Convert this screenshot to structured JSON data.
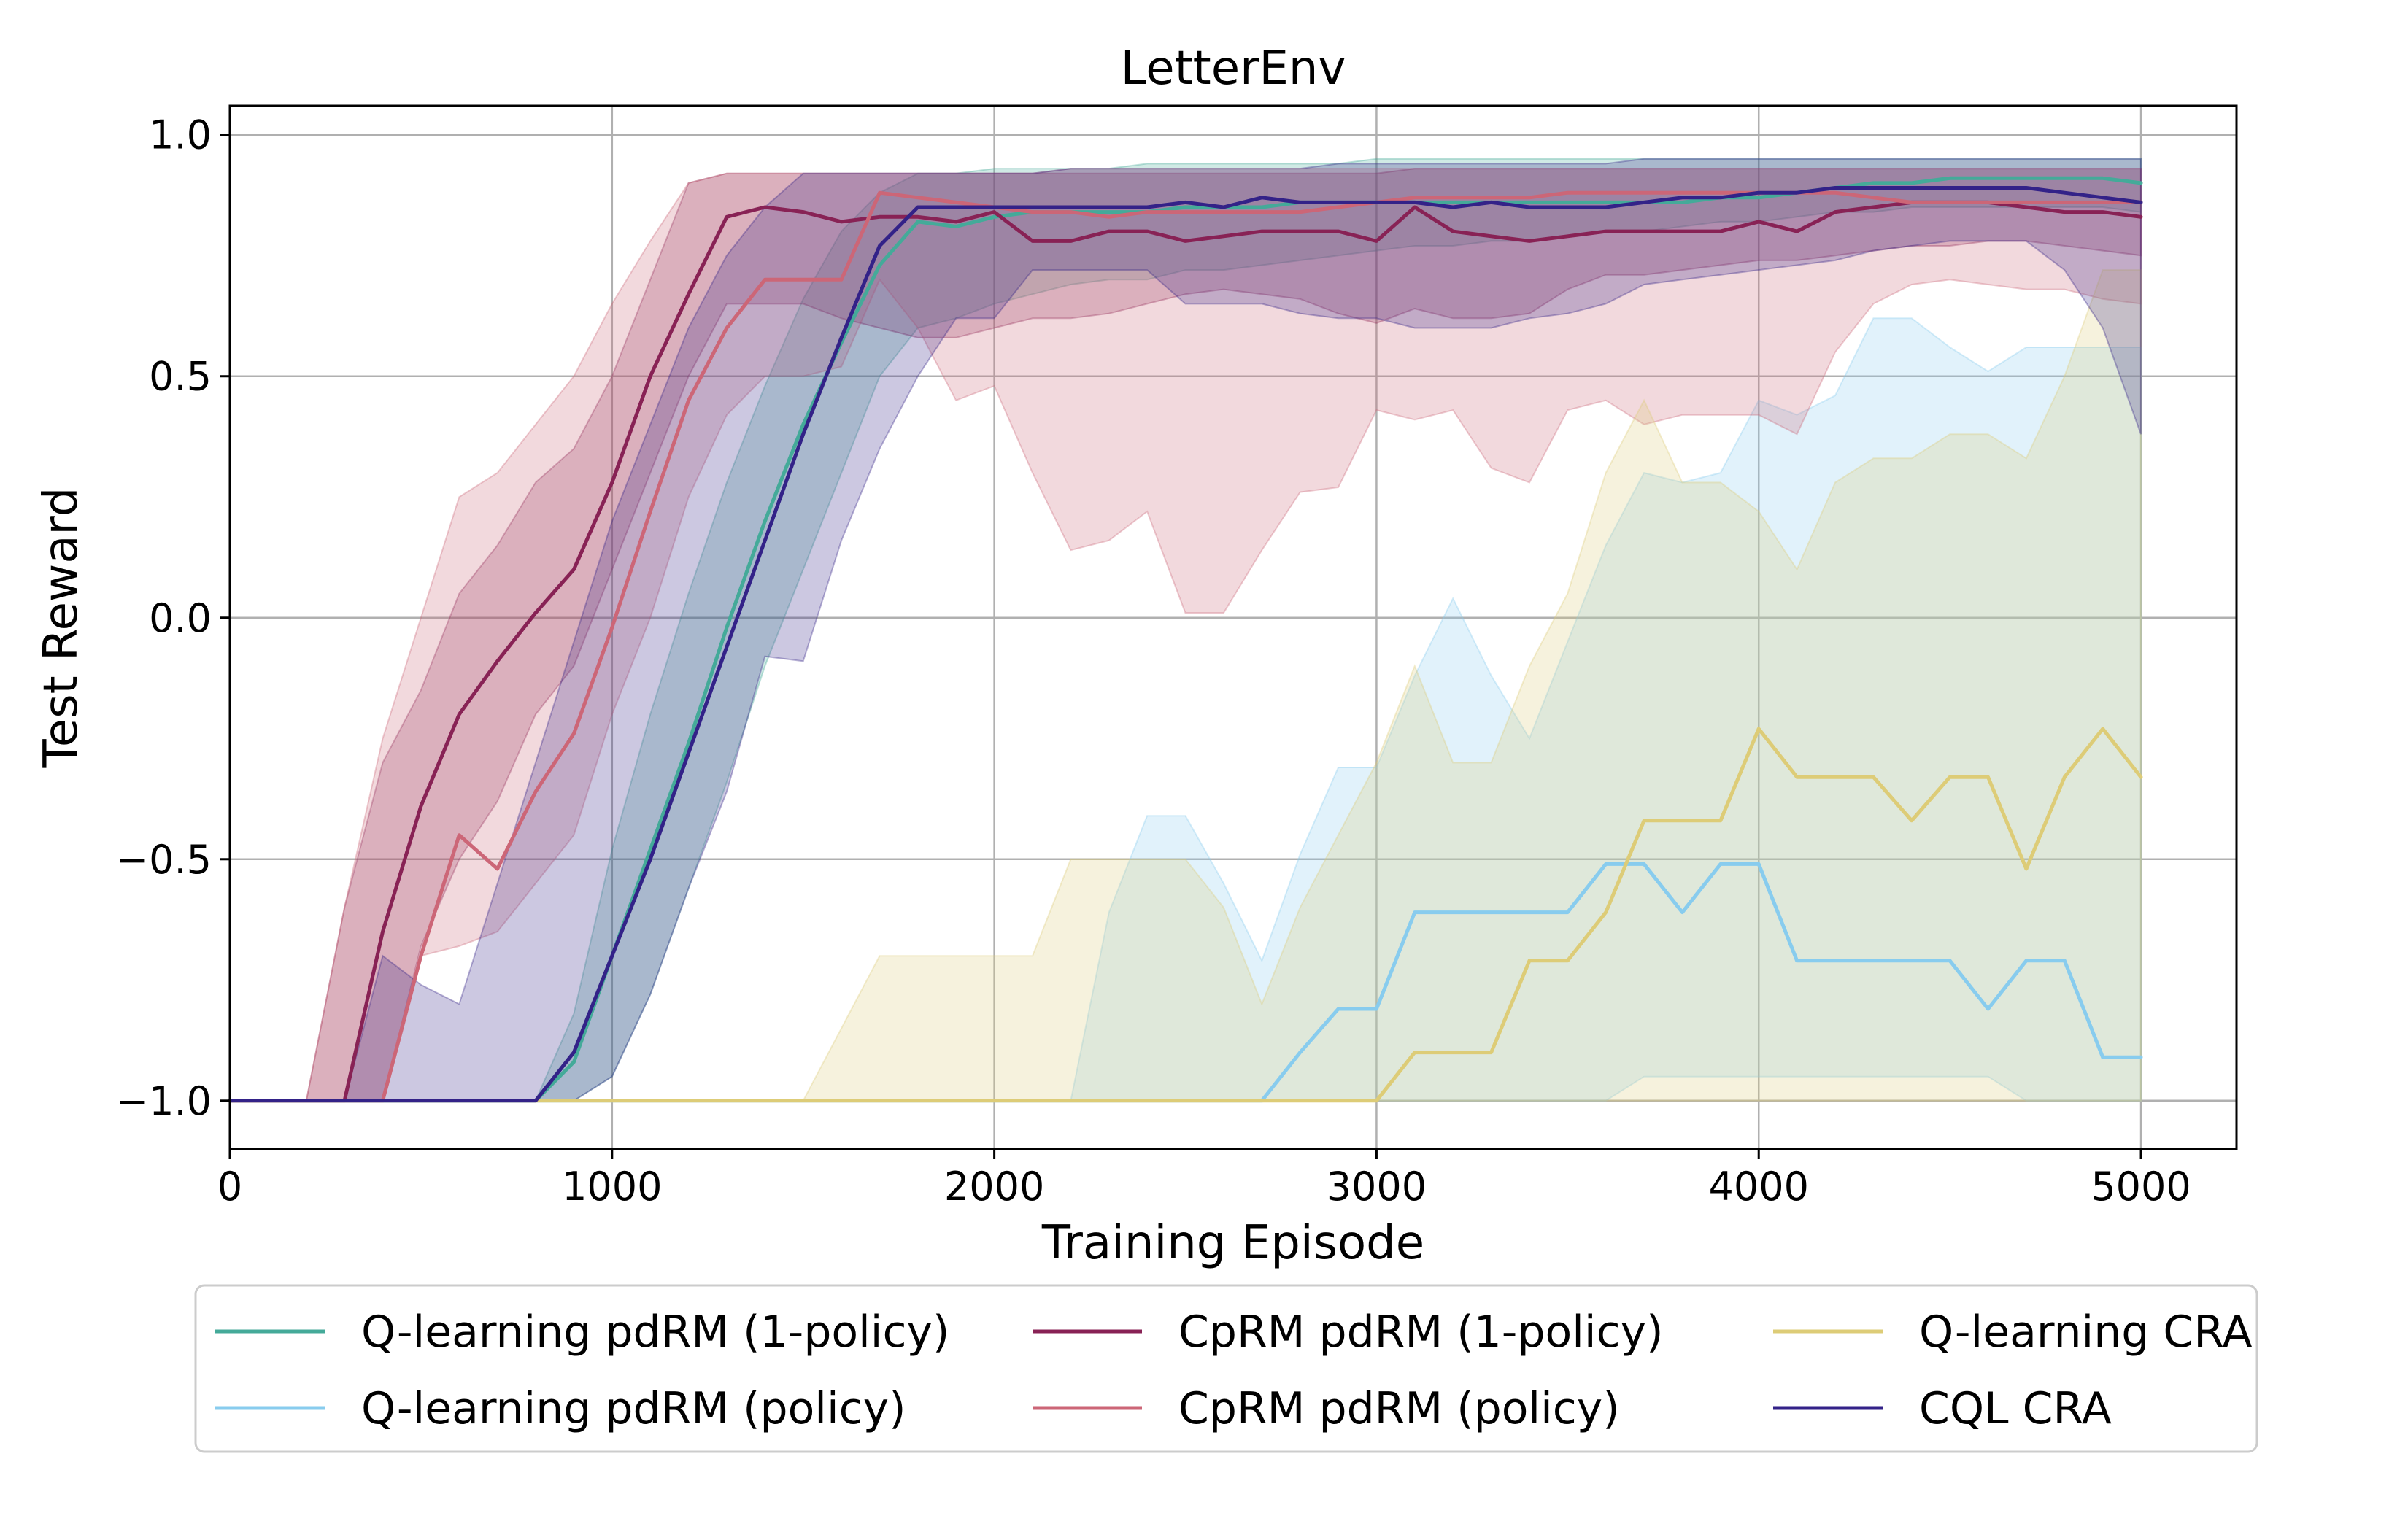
{
  "chart_data": {
    "type": "line",
    "title": "LetterEnv",
    "xlabel": "Training Episode",
    "ylabel": "Test Reward",
    "xlim": [
      0,
      5250
    ],
    "ylim": [
      -1.1,
      1.06
    ],
    "xticks": [
      0,
      1000,
      2000,
      3000,
      4000,
      5000
    ],
    "xtick_labels": [
      "0",
      "1000",
      "2000",
      "3000",
      "4000",
      "5000"
    ],
    "yticks": [
      -1.0,
      -0.5,
      0.0,
      0.5,
      1.0
    ],
    "ytick_labels": [
      "−1.0",
      "−0.5",
      "0.0",
      "0.5",
      "1.0"
    ],
    "grid": true,
    "legend_position": "below",
    "x": [
      0,
      100,
      200,
      300,
      400,
      500,
      600,
      700,
      800,
      900,
      1000,
      1100,
      1200,
      1300,
      1400,
      1500,
      1600,
      1700,
      1800,
      1900,
      2000,
      2100,
      2200,
      2300,
      2400,
      2500,
      2600,
      2700,
      2800,
      2900,
      3000,
      3100,
      3200,
      3300,
      3400,
      3500,
      3600,
      3700,
      3800,
      3900,
      4000,
      4100,
      4200,
      4300,
      4400,
      4500,
      4600,
      4700,
      4800,
      4900,
      5000
    ],
    "series": [
      {
        "name": "Q-learning pdRM (1-policy)",
        "color": "#44AA99",
        "values": [
          -1,
          -1,
          -1,
          -1,
          -1,
          -1,
          -1,
          -1,
          -1,
          -0.92,
          -0.7,
          -0.48,
          -0.26,
          -0.02,
          0.2,
          0.4,
          0.57,
          0.73,
          0.82,
          0.81,
          0.83,
          0.84,
          0.84,
          0.84,
          0.84,
          0.85,
          0.85,
          0.85,
          0.86,
          0.86,
          0.86,
          0.86,
          0.86,
          0.86,
          0.86,
          0.86,
          0.86,
          0.86,
          0.86,
          0.87,
          0.87,
          0.88,
          0.89,
          0.9,
          0.9,
          0.91,
          0.91,
          0.91,
          0.91,
          0.91,
          0.9
        ],
        "lower": [
          -1,
          -1,
          -1,
          -1,
          -1,
          -1,
          -1,
          -1,
          -1,
          -1,
          -0.95,
          -0.78,
          -0.56,
          -0.34,
          -0.1,
          0.1,
          0.3,
          0.5,
          0.6,
          0.62,
          0.65,
          0.67,
          0.69,
          0.7,
          0.7,
          0.72,
          0.72,
          0.73,
          0.74,
          0.75,
          0.76,
          0.77,
          0.77,
          0.78,
          0.78,
          0.79,
          0.8,
          0.8,
          0.81,
          0.82,
          0.82,
          0.83,
          0.84,
          0.84,
          0.85,
          0.85,
          0.85,
          0.85,
          0.85,
          0.85,
          0.84
        ],
        "upper": [
          -1,
          -1,
          -1,
          -1,
          -1,
          -1,
          -1,
          -1,
          -1,
          -0.82,
          -0.48,
          -0.2,
          0.05,
          0.28,
          0.48,
          0.66,
          0.8,
          0.88,
          0.92,
          0.92,
          0.93,
          0.93,
          0.93,
          0.93,
          0.94,
          0.94,
          0.94,
          0.94,
          0.94,
          0.94,
          0.95,
          0.95,
          0.95,
          0.95,
          0.95,
          0.95,
          0.95,
          0.95,
          0.95,
          0.95,
          0.95,
          0.95,
          0.95,
          0.95,
          0.95,
          0.95,
          0.95,
          0.95,
          0.95,
          0.95,
          0.95
        ]
      },
      {
        "name": "Q-learning pdRM (policy)",
        "color": "#88CCEE",
        "values": [
          -1,
          -1,
          -1,
          -1,
          -1,
          -1,
          -1,
          -1,
          -1,
          -1,
          -1,
          -1,
          -1,
          -1,
          -1,
          -1,
          -1,
          -1,
          -1,
          -1,
          -1,
          -1,
          -1,
          -1,
          -1,
          -1,
          -1,
          -1,
          -0.9,
          -0.81,
          -0.81,
          -0.61,
          -0.61,
          -0.61,
          -0.61,
          -0.61,
          -0.51,
          -0.51,
          -0.61,
          -0.51,
          -0.51,
          -0.71,
          -0.71,
          -0.71,
          -0.71,
          -0.71,
          -0.81,
          -0.71,
          -0.71,
          -0.91,
          -0.91
        ],
        "lower": [
          -1,
          -1,
          -1,
          -1,
          -1,
          -1,
          -1,
          -1,
          -1,
          -1,
          -1,
          -1,
          -1,
          -1,
          -1,
          -1,
          -1,
          -1,
          -1,
          -1,
          -1,
          -1,
          -1,
          -1,
          -1,
          -1,
          -1,
          -1,
          -1,
          -1,
          -1,
          -1,
          -1,
          -1,
          -1,
          -1,
          -1,
          -0.95,
          -0.95,
          -0.95,
          -0.95,
          -0.95,
          -0.95,
          -0.95,
          -0.95,
          -0.95,
          -0.95,
          -1,
          -1,
          -1,
          -1
        ],
        "upper": [
          -1,
          -1,
          -1,
          -1,
          -1,
          -1,
          -1,
          -1,
          -1,
          -1,
          -1,
          -1,
          -1,
          -1,
          -1,
          -1,
          -1,
          -1,
          -1,
          -1,
          -1,
          -1,
          -1,
          -0.61,
          -0.41,
          -0.41,
          -0.55,
          -0.71,
          -0.49,
          -0.31,
          -0.31,
          -0.12,
          0.04,
          -0.12,
          -0.25,
          -0.05,
          0.15,
          0.3,
          0.28,
          0.3,
          0.45,
          0.42,
          0.46,
          0.62,
          0.62,
          0.56,
          0.51,
          0.56,
          0.56,
          0.56,
          0.56
        ]
      },
      {
        "name": "CpRM pdRM (1-policy)",
        "color": "#882255",
        "values": [
          -1,
          -1,
          -1,
          -1,
          -0.65,
          -0.39,
          -0.2,
          -0.09,
          0.01,
          0.1,
          0.28,
          0.5,
          0.67,
          0.83,
          0.85,
          0.84,
          0.82,
          0.83,
          0.83,
          0.82,
          0.84,
          0.78,
          0.78,
          0.8,
          0.8,
          0.78,
          0.79,
          0.8,
          0.8,
          0.8,
          0.78,
          0.85,
          0.8,
          0.79,
          0.78,
          0.79,
          0.8,
          0.8,
          0.8,
          0.8,
          0.82,
          0.8,
          0.84,
          0.85,
          0.86,
          0.86,
          0.86,
          0.85,
          0.84,
          0.84,
          0.83
        ],
        "lower": [
          -1,
          -1,
          -1,
          -1,
          -1,
          -0.68,
          -0.5,
          -0.38,
          -0.2,
          -0.1,
          0.1,
          0.3,
          0.5,
          0.65,
          0.65,
          0.65,
          0.62,
          0.6,
          0.58,
          0.58,
          0.6,
          0.62,
          0.62,
          0.63,
          0.65,
          0.67,
          0.68,
          0.67,
          0.66,
          0.63,
          0.61,
          0.64,
          0.62,
          0.62,
          0.63,
          0.68,
          0.71,
          0.71,
          0.72,
          0.73,
          0.74,
          0.74,
          0.75,
          0.76,
          0.77,
          0.77,
          0.78,
          0.78,
          0.77,
          0.76,
          0.75
        ],
        "upper": [
          -1,
          -1,
          -1,
          -0.6,
          -0.3,
          -0.15,
          0.05,
          0.15,
          0.28,
          0.35,
          0.5,
          0.7,
          0.9,
          0.92,
          0.92,
          0.92,
          0.92,
          0.92,
          0.92,
          0.92,
          0.92,
          0.92,
          0.92,
          0.92,
          0.92,
          0.92,
          0.92,
          0.92,
          0.92,
          0.92,
          0.92,
          0.93,
          0.93,
          0.93,
          0.93,
          0.93,
          0.93,
          0.93,
          0.93,
          0.93,
          0.93,
          0.93,
          0.93,
          0.93,
          0.93,
          0.93,
          0.93,
          0.93,
          0.93,
          0.93,
          0.93
        ]
      },
      {
        "name": "CpRM pdRM (policy)",
        "color": "#CC6677",
        "values": [
          -1,
          -1,
          -1,
          -1,
          -1,
          -0.7,
          -0.45,
          -0.52,
          -0.36,
          -0.24,
          -0.02,
          0.22,
          0.45,
          0.6,
          0.7,
          0.7,
          0.7,
          0.88,
          0.87,
          0.86,
          0.85,
          0.84,
          0.84,
          0.83,
          0.84,
          0.84,
          0.84,
          0.84,
          0.84,
          0.85,
          0.86,
          0.87,
          0.87,
          0.87,
          0.87,
          0.88,
          0.88,
          0.88,
          0.88,
          0.88,
          0.88,
          0.88,
          0.88,
          0.87,
          0.86,
          0.86,
          0.86,
          0.86,
          0.86,
          0.86,
          0.86
        ],
        "lower": [
          -1,
          -1,
          -1,
          -1,
          -1,
          -0.7,
          -0.68,
          -0.65,
          -0.55,
          -0.45,
          -0.2,
          0.0,
          0.25,
          0.42,
          0.5,
          0.5,
          0.52,
          0.7,
          0.6,
          0.45,
          0.48,
          0.3,
          0.14,
          0.16,
          0.22,
          0.01,
          0.01,
          0.14,
          0.26,
          0.27,
          0.43,
          0.41,
          0.43,
          0.31,
          0.28,
          0.43,
          0.45,
          0.4,
          0.42,
          0.42,
          0.42,
          0.38,
          0.55,
          0.65,
          0.69,
          0.7,
          0.69,
          0.68,
          0.68,
          0.66,
          0.65
        ],
        "upper": [
          -1,
          -1,
          -1,
          -0.6,
          -0.25,
          0.0,
          0.25,
          0.3,
          0.4,
          0.5,
          0.65,
          0.78,
          0.9,
          0.92,
          0.92,
          0.92,
          0.92,
          0.92,
          0.92,
          0.92,
          0.92,
          0.92,
          0.93,
          0.93,
          0.93,
          0.93,
          0.93,
          0.93,
          0.93,
          0.93,
          0.93,
          0.93,
          0.93,
          0.93,
          0.93,
          0.93,
          0.93,
          0.93,
          0.93,
          0.93,
          0.93,
          0.93,
          0.93,
          0.93,
          0.93,
          0.93,
          0.93,
          0.93,
          0.93,
          0.93,
          0.93
        ]
      },
      {
        "name": "Q-learning CRA",
        "color": "#DDCC77",
        "values": [
          -1,
          -1,
          -1,
          -1,
          -1,
          -1,
          -1,
          -1,
          -1,
          -1,
          -1,
          -1,
          -1,
          -1,
          -1,
          -1,
          -1,
          -1,
          -1,
          -1,
          -1,
          -1,
          -1,
          -1,
          -1,
          -1,
          -1,
          -1,
          -1,
          -1,
          -1,
          -0.9,
          -0.9,
          -0.9,
          -0.71,
          -0.71,
          -0.61,
          -0.42,
          -0.42,
          -0.42,
          -0.23,
          -0.33,
          -0.33,
          -0.33,
          -0.42,
          -0.33,
          -0.33,
          -0.52,
          -0.33,
          -0.23,
          -0.33
        ],
        "lower": [
          -1,
          -1,
          -1,
          -1,
          -1,
          -1,
          -1,
          -1,
          -1,
          -1,
          -1,
          -1,
          -1,
          -1,
          -1,
          -1,
          -1,
          -1,
          -1,
          -1,
          -1,
          -1,
          -1,
          -1,
          -1,
          -1,
          -1,
          -1,
          -1,
          -1,
          -1,
          -1,
          -1,
          -1,
          -1,
          -1,
          -1,
          -1,
          -1,
          -1,
          -1,
          -1,
          -1,
          -1,
          -1,
          -1,
          -1,
          -1,
          -1,
          -1,
          -1
        ],
        "upper": [
          -1,
          -1,
          -1,
          -1,
          -1,
          -1,
          -1,
          -1,
          -1,
          -1,
          -1,
          -1,
          -1,
          -1,
          -1,
          -1,
          -0.85,
          -0.7,
          -0.7,
          -0.7,
          -0.7,
          -0.7,
          -0.5,
          -0.5,
          -0.5,
          -0.5,
          -0.6,
          -0.8,
          -0.6,
          -0.45,
          -0.3,
          -0.1,
          -0.3,
          -0.3,
          -0.1,
          0.05,
          0.3,
          0.45,
          0.28,
          0.28,
          0.22,
          0.1,
          0.28,
          0.33,
          0.33,
          0.38,
          0.38,
          0.33,
          0.5,
          0.72,
          0.72
        ]
      },
      {
        "name": "CQL CRA",
        "color": "#332288",
        "values": [
          -1,
          -1,
          -1,
          -1,
          -1,
          -1,
          -1,
          -1,
          -1,
          -0.9,
          -0.7,
          -0.5,
          -0.28,
          -0.06,
          0.16,
          0.38,
          0.58,
          0.77,
          0.85,
          0.85,
          0.85,
          0.85,
          0.85,
          0.85,
          0.85,
          0.86,
          0.85,
          0.87,
          0.86,
          0.86,
          0.86,
          0.86,
          0.85,
          0.86,
          0.85,
          0.85,
          0.85,
          0.86,
          0.87,
          0.87,
          0.88,
          0.88,
          0.89,
          0.89,
          0.89,
          0.89,
          0.89,
          0.89,
          0.88,
          0.87,
          0.86
        ],
        "lower": [
          -1,
          -1,
          -1,
          -1,
          -1,
          -1,
          -1,
          -1,
          -1,
          -1,
          -0.95,
          -0.78,
          -0.56,
          -0.36,
          -0.08,
          -0.09,
          0.16,
          0.35,
          0.5,
          0.62,
          0.62,
          0.72,
          0.72,
          0.72,
          0.72,
          0.65,
          0.65,
          0.65,
          0.63,
          0.62,
          0.62,
          0.6,
          0.6,
          0.6,
          0.62,
          0.63,
          0.65,
          0.69,
          0.7,
          0.71,
          0.72,
          0.73,
          0.74,
          0.76,
          0.77,
          0.78,
          0.78,
          0.78,
          0.72,
          0.6,
          0.38
        ],
        "upper": [
          -1,
          -1,
          -1,
          -1,
          -0.7,
          -0.76,
          -0.8,
          -0.55,
          -0.3,
          -0.05,
          0.2,
          0.4,
          0.6,
          0.75,
          0.85,
          0.92,
          0.92,
          0.92,
          0.92,
          0.92,
          0.92,
          0.92,
          0.93,
          0.93,
          0.93,
          0.93,
          0.93,
          0.93,
          0.93,
          0.94,
          0.94,
          0.94,
          0.94,
          0.94,
          0.94,
          0.94,
          0.94,
          0.95,
          0.95,
          0.95,
          0.95,
          0.95,
          0.95,
          0.95,
          0.95,
          0.95,
          0.95,
          0.95,
          0.95,
          0.95,
          0.95
        ]
      }
    ]
  }
}
